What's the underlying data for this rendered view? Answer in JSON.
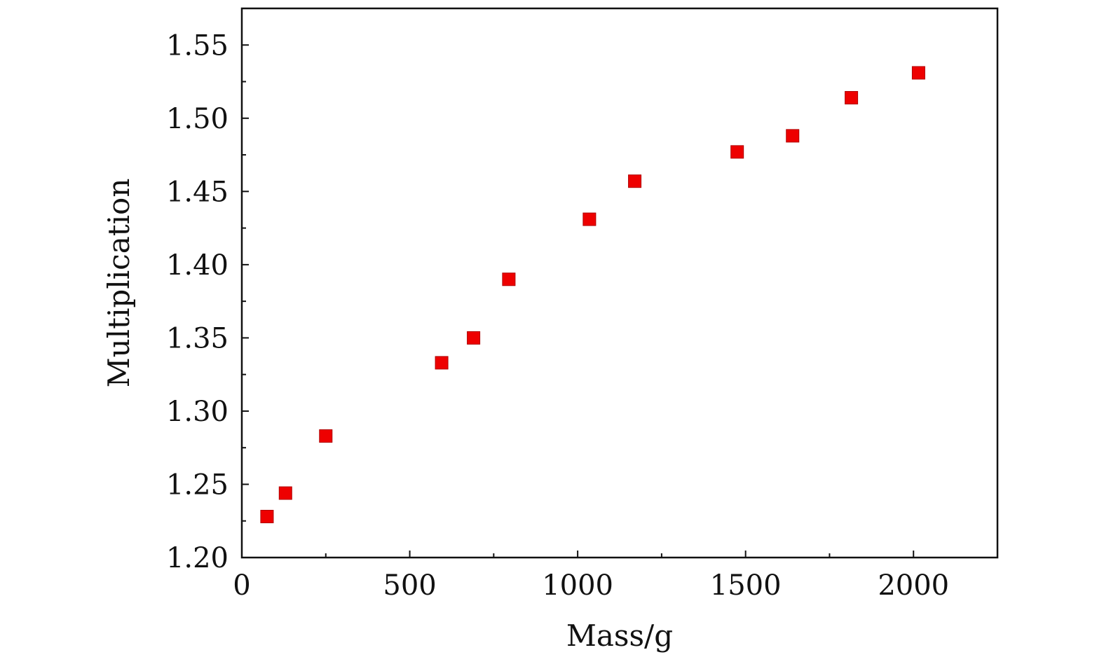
{
  "chart_data": {
    "type": "scatter",
    "title": "",
    "xlabel": "Mass/g",
    "ylabel": "Multiplication",
    "xlim": [
      0,
      2250
    ],
    "ylim": [
      1.2,
      1.575
    ],
    "x_ticks": [
      0,
      500,
      1000,
      1500,
      2000
    ],
    "x_tick_labels": [
      "0",
      "500",
      "1000",
      "1500",
      "2000"
    ],
    "x_minor_ticks": [
      250,
      750,
      1250,
      1750
    ],
    "y_ticks": [
      1.2,
      1.25,
      1.3,
      1.35,
      1.4,
      1.45,
      1.5,
      1.55
    ],
    "y_tick_labels": [
      "1.20",
      "1.25",
      "1.30",
      "1.35",
      "1.40",
      "1.45",
      "1.50",
      "1.55"
    ],
    "y_minor_ticks": [
      1.225,
      1.275,
      1.325,
      1.375,
      1.425,
      1.475,
      1.525
    ],
    "grid": false,
    "legend": "none",
    "marker": "square",
    "color": "#ee0000",
    "series": [
      {
        "x": [
          75,
          130,
          250,
          595,
          690,
          795,
          1035,
          1170,
          1475,
          1640,
          1815,
          2015
        ],
        "y": [
          1.228,
          1.244,
          1.283,
          1.333,
          1.35,
          1.39,
          1.431,
          1.457,
          1.477,
          1.488,
          1.514,
          1.531
        ]
      }
    ]
  }
}
